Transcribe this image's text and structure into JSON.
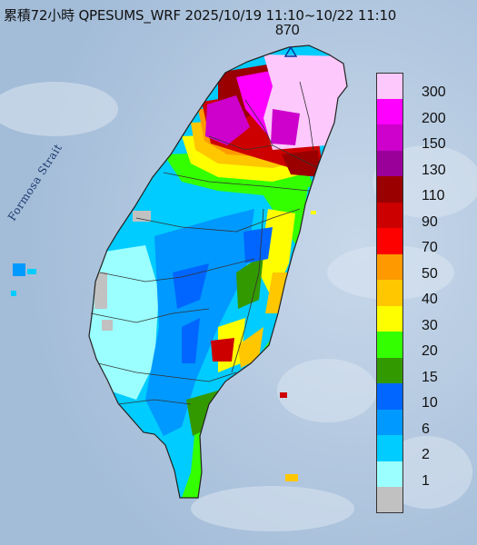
{
  "title": "累積72小時 QPESUMS_WRF 2025/10/19 11:10~10/22 11:10",
  "max_value": "870",
  "strait_label": "Formosa Strait",
  "legend": [
    {
      "label": "300",
      "color": "#fdc8fc"
    },
    {
      "label": "200",
      "color": "#fd00fe"
    },
    {
      "label": "150",
      "color": "#cd00cc"
    },
    {
      "label": "130",
      "color": "#9a0099"
    },
    {
      "label": "110",
      "color": "#9a0000"
    },
    {
      "label": "90",
      "color": "#cd0000"
    },
    {
      "label": "70",
      "color": "#fd0000"
    },
    {
      "label": "50",
      "color": "#fe9900"
    },
    {
      "label": "40",
      "color": "#fec700"
    },
    {
      "label": "30",
      "color": "#fefe00"
    },
    {
      "label": "20",
      "color": "#33ff00"
    },
    {
      "label": "15",
      "color": "#339900"
    },
    {
      "label": "10",
      "color": "#0066ff"
    },
    {
      "label": "6",
      "color": "#0099ff"
    },
    {
      "label": "2",
      "color": "#00ccff"
    },
    {
      "label": "1",
      "color": "#9bffff"
    },
    {
      "label": "",
      "color": "#c1c1c1"
    }
  ]
}
